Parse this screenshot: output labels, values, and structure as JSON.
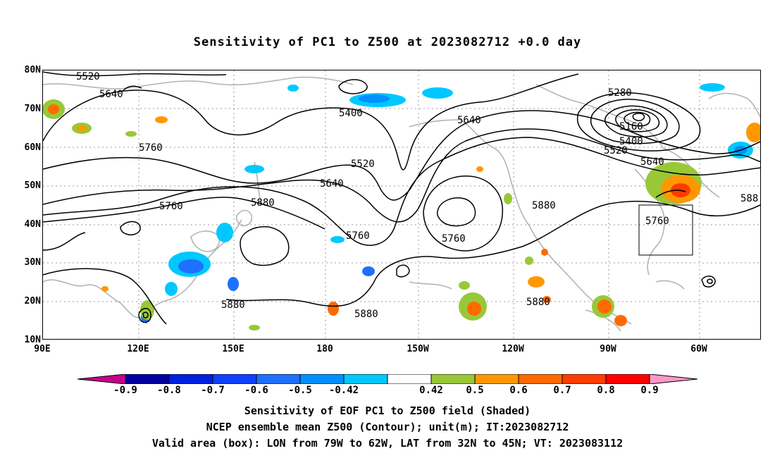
{
  "title": "Sensitivity of PC1 to Z500 at 2023082712 +0.0 day",
  "lat_labels": [
    "80N",
    "70N",
    "60N",
    "50N",
    "40N",
    "30N",
    "20N",
    "10N"
  ],
  "lon_labels": [
    "90E",
    "120E",
    "150E",
    "180",
    "150W",
    "120W",
    "90W",
    "60W"
  ],
  "contour_labels": [
    "5520",
    "5640",
    "5400",
    "5760",
    "5520",
    "5640",
    "5760",
    "5880",
    "5760",
    "5640",
    "5880",
    "5760",
    "5880",
    "5880",
    "5280",
    "5160",
    "5400",
    "5520",
    "5640",
    "5760",
    "588",
    "5880"
  ],
  "colorbar": {
    "labels": [
      "-0.9",
      "-0.8",
      "-0.7",
      "-0.6",
      "-0.5",
      "-0.42",
      "0.42",
      "0.5",
      "0.6",
      "0.7",
      "0.8",
      "0.9"
    ],
    "colors": [
      "#0000a0",
      "#0020e0",
      "#1040ff",
      "#2070ff",
      "#0090ff",
      "#00c8ff",
      "#ffffff",
      "#98c838",
      "#ff9800",
      "#ff6a00",
      "#ff3c00",
      "#ff0000"
    ],
    "low_extend_color": "#c8008c",
    "high_extend_color": "#ff98c8"
  },
  "captions": [
    "Sensitivity of EOF PC1 to Z500 field (Shaded)",
    "NCEP ensemble mean Z500 (Contour); unit(m); IT:2023082712",
    "Valid area (box): LON from 79W to 62W, LAT from 32N to 45N; VT: 2023083112"
  ]
}
